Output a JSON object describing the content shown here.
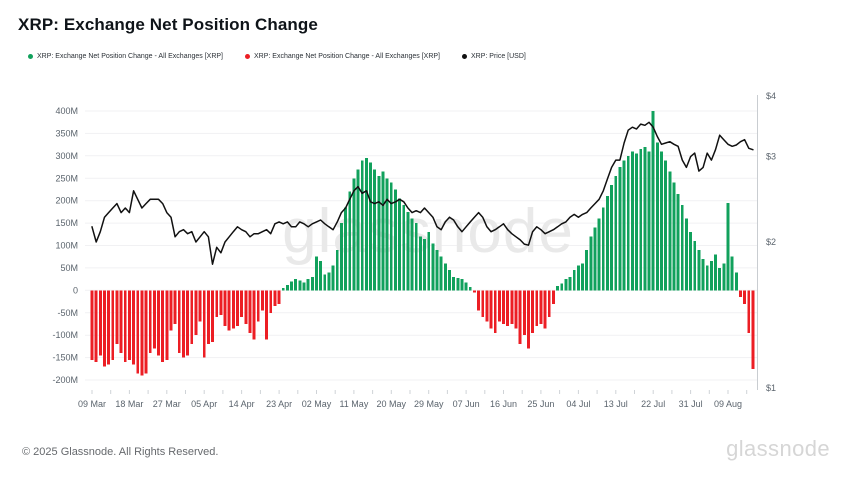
{
  "header": {
    "title": "XRP: Exchange Net Position Change"
  },
  "legend": {
    "items": [
      {
        "label": "XRP: Exchange Net Position Change - All Exchanges [XRP]",
        "color": "#11a15c",
        "icon": "dot"
      },
      {
        "label": "XRP: Exchange Net Position Change - All Exchanges [XRP]",
        "color": "#ec1e24",
        "icon": "dot"
      },
      {
        "label": "XRP: Price [USD]",
        "color": "#111111",
        "icon": "dot"
      }
    ]
  },
  "watermark": "glassnode",
  "footer": {
    "copyright": "© 2025 Glassnode. All Rights Reserved.",
    "brand": "glassnode"
  },
  "chart_data": {
    "type": "bar",
    "title": "XRP: Exchange Net Position Change",
    "interval": "1 day",
    "start_date": "09 Mar",
    "end_date": "15 Aug",
    "grid": true,
    "legend_position": "top",
    "x_tick_labels": [
      "09 Mar",
      "18 Mar",
      "27 Mar",
      "05 Apr",
      "14 Apr",
      "23 Apr",
      "02 May",
      "11 May",
      "20 May",
      "29 May",
      "07 Jun",
      "16 Jun",
      "25 Jun",
      "04 Jul",
      "13 Jul",
      "22 Jul",
      "31 Jul",
      "09 Aug"
    ],
    "x_tick_interval_days": 9,
    "y_left": {
      "tick_labels": [
        "400M",
        "350M",
        "300M",
        "250M",
        "200M",
        "150M",
        "100M",
        "50M",
        "0",
        "-50M",
        "-100M",
        "-150M",
        "-200M"
      ],
      "tick_values": [
        400,
        350,
        300,
        250,
        200,
        150,
        100,
        50,
        0,
        -50,
        -100,
        -150,
        -200
      ],
      "unit": "XRP (millions)",
      "scale": "linear"
    },
    "y_right": {
      "tick_labels": [
        "$4",
        "$3",
        "$2",
        "$1"
      ],
      "tick_values": [
        4,
        3,
        2,
        1
      ],
      "unit": "USD",
      "scale": "log"
    },
    "series": [
      {
        "name": "XRP: Exchange Net Position Change - All Exchanges [XRP]",
        "type": "bar",
        "axis": "left",
        "unit": "M XRP",
        "positive_color": "#11a15c",
        "negative_color": "#ec1e24",
        "values": [
          -155,
          -160,
          -145,
          -170,
          -165,
          -155,
          -120,
          -140,
          -160,
          -155,
          -165,
          -185,
          -190,
          -185,
          -140,
          -130,
          -145,
          -160,
          -155,
          -90,
          -75,
          -140,
          -150,
          -145,
          -120,
          -100,
          -70,
          -150,
          -120,
          -115,
          -60,
          -55,
          -80,
          -90,
          -85,
          -80,
          -60,
          -75,
          -95,
          -110,
          -70,
          -45,
          -110,
          -50,
          -35,
          -30,
          5,
          12,
          20,
          25,
          22,
          18,
          25,
          30,
          75,
          65,
          35,
          40,
          55,
          90,
          150,
          185,
          220,
          250,
          270,
          290,
          295,
          285,
          270,
          255,
          265,
          250,
          240,
          225,
          205,
          190,
          175,
          160,
          150,
          120,
          115,
          130,
          105,
          90,
          75,
          60,
          45,
          30,
          28,
          25,
          18,
          8,
          -5,
          -45,
          -60,
          -70,
          -85,
          -95,
          -70,
          -75,
          -80,
          -75,
          -85,
          -120,
          -100,
          -130,
          -95,
          -80,
          -75,
          -85,
          -60,
          -30,
          10,
          15,
          25,
          30,
          45,
          55,
          60,
          90,
          120,
          140,
          160,
          185,
          210,
          235,
          255,
          275,
          290,
          300,
          310,
          305,
          315,
          320,
          310,
          400,
          330,
          310,
          290,
          265,
          240,
          215,
          190,
          160,
          130,
          110,
          90,
          70,
          55,
          65,
          80,
          50,
          60,
          195,
          75,
          40,
          -15,
          -30,
          -95,
          -175
        ]
      },
      {
        "name": "XRP: Price [USD]",
        "type": "line",
        "axis": "right",
        "unit": "USD",
        "color": "#111111",
        "values": [
          2.15,
          2.0,
          2.1,
          2.25,
          2.3,
          2.35,
          2.4,
          2.3,
          2.35,
          2.3,
          2.55,
          2.45,
          2.35,
          2.4,
          2.45,
          2.45,
          2.45,
          2.4,
          2.3,
          2.25,
          2.05,
          2.1,
          2.12,
          2.08,
          2.1,
          2.0,
          2.05,
          2.1,
          2.05,
          1.8,
          1.95,
          1.9,
          2.0,
          2.05,
          2.1,
          2.15,
          2.12,
          2.1,
          2.05,
          2.08,
          2.08,
          2.1,
          2.12,
          2.08,
          2.18,
          2.2,
          2.18,
          2.2,
          2.15,
          2.15,
          2.2,
          2.18,
          2.15,
          2.18,
          2.2,
          2.22,
          2.18,
          2.15,
          2.12,
          2.2,
          2.3,
          2.35,
          2.45,
          2.55,
          2.6,
          2.52,
          2.55,
          2.42,
          2.4,
          2.42,
          2.38,
          2.45,
          2.4,
          2.42,
          2.45,
          2.42,
          2.35,
          2.3,
          2.32,
          2.3,
          2.35,
          2.3,
          2.25,
          2.15,
          2.12,
          2.2,
          2.25,
          2.22,
          2.15,
          2.1,
          2.15,
          2.2,
          2.25,
          2.3,
          2.25,
          2.15,
          2.1,
          2.12,
          2.15,
          2.18,
          2.12,
          2.08,
          2.05,
          2.02,
          1.98,
          1.97,
          2.1,
          2.15,
          2.12,
          2.08,
          2.1,
          2.12,
          2.15,
          2.18,
          2.2,
          2.25,
          2.28,
          2.25,
          2.28,
          2.3,
          2.35,
          2.4,
          2.45,
          2.55,
          2.7,
          2.85,
          2.95,
          2.95,
          3.2,
          3.4,
          3.45,
          3.42,
          3.5,
          3.48,
          3.53,
          3.45,
          3.3,
          3.18,
          3.2,
          3.22,
          3.18,
          3.15,
          2.95,
          2.85,
          3.0,
          3.05,
          2.8,
          2.85,
          3.05,
          2.95,
          3.1,
          3.32,
          3.25,
          3.18,
          3.15,
          3.17,
          3.22,
          3.25,
          3.12,
          3.1
        ]
      }
    ]
  }
}
